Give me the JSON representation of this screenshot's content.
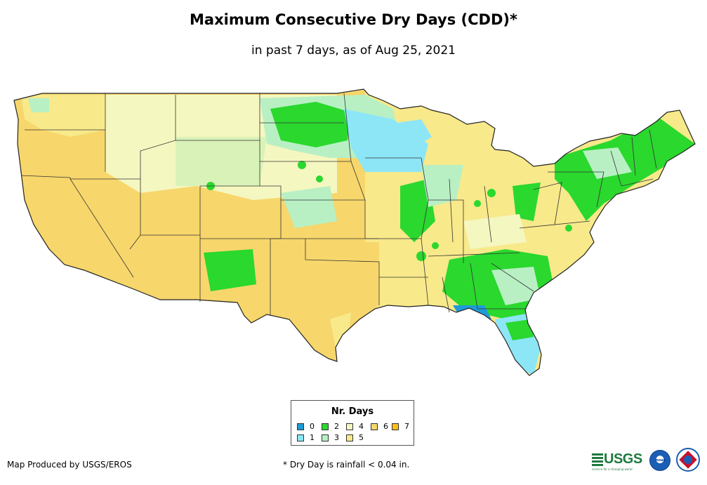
{
  "title": "Maximum Consecutive Dry Days (CDD)*",
  "subtitle": "in past 7 days, as of Aug 25, 2021",
  "legend": {
    "title": "Nr. Days",
    "items": [
      {
        "label": "0",
        "color": "#1f9bd7"
      },
      {
        "label": "1",
        "color": "#8de6f6"
      },
      {
        "label": "2",
        "color": "#2ad82e"
      },
      {
        "label": "3",
        "color": "#b8f0c4"
      },
      {
        "label": "4",
        "color": "#f5f7c0"
      },
      {
        "label": "5",
        "color": "#f8e98a"
      },
      {
        "label": "6",
        "color": "#f7d66b"
      },
      {
        "label": "7",
        "color": "#f9be1a"
      }
    ]
  },
  "credit": "Map Produced by USGS/EROS",
  "footnote": "* Dry Day is rainfall < 0.04 in.",
  "logos": {
    "usgs": "USGS",
    "usgs_tagline": "science for a changing world",
    "noaa": "noaa",
    "nws": "National Weather Service"
  }
}
